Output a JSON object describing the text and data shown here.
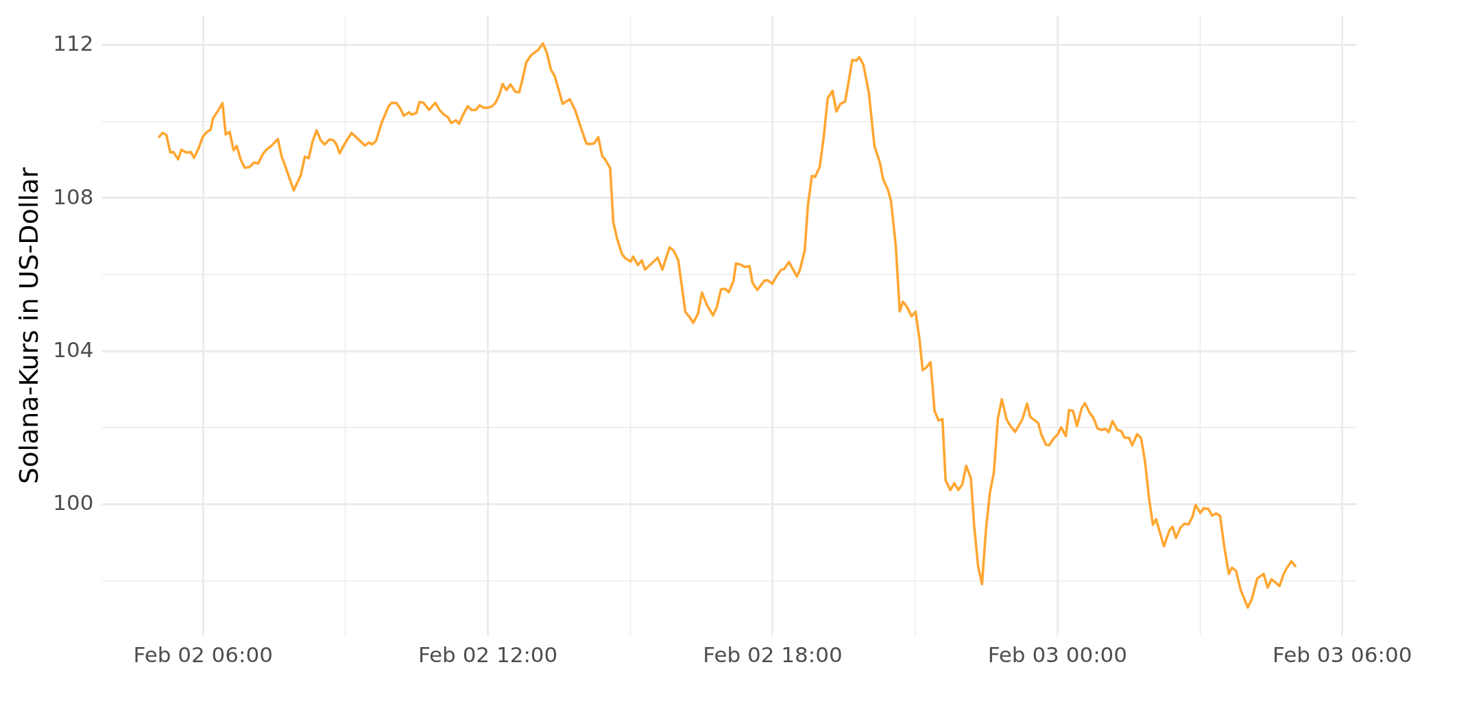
{
  "chart_data": {
    "type": "line",
    "ylabel": "Solana-Kurs in US-Dollar",
    "xlim": [
      "--02-02T03:52",
      "--02-03T06:18"
    ],
    "ylim": [
      96.56,
      112.77
    ],
    "xticks": [
      {
        "value": "--02-02T06:00",
        "label": "Feb 02 06:00"
      },
      {
        "value": "--02-02T09:00",
        "label": null
      },
      {
        "value": "--02-02T12:00",
        "label": "Feb 02 12:00"
      },
      {
        "value": "--02-02T15:00",
        "label": null
      },
      {
        "value": "--02-02T18:00",
        "label": "Feb 02 18:00"
      },
      {
        "value": "--02-02T21:00",
        "label": null
      },
      {
        "value": "--02-03T00:00",
        "label": "Feb 03 00:00"
      },
      {
        "value": "--02-03T03:00",
        "label": null
      },
      {
        "value": "--02-03T06:00",
        "label": "Feb 03 06:00"
      }
    ],
    "yticks": [
      {
        "value": 98,
        "label": null
      },
      100,
      {
        "value": 102,
        "label": null
      },
      104,
      {
        "value": 106,
        "label": null
      },
      108,
      {
        "value": 110,
        "label": null
      },
      112
    ],
    "grid": true,
    "line_style": "solid",
    "series": [
      {
        "color": "#ffa631",
        "x": [
          "--02-02T05:05",
          "--02-02T05:09",
          "--02-02T05:14",
          "--02-02T05:19",
          "--02-02T05:23",
          "--02-02T05:29",
          "--02-02T05:33",
          "--02-02T05:39",
          "--02-02T05:45",
          "--02-02T05:49",
          "--02-02T05:55",
          "--02-02T06:00",
          "--02-02T06:05",
          "--02-02T06:10",
          "--02-02T06:13",
          "--02-02T06:19",
          "--02-02T06:25",
          "--02-02T06:29",
          "--02-02T06:34",
          "--02-02T06:39",
          "--02-02T06:43",
          "--02-02T06:48",
          "--02-02T06:53",
          "--02-02T06:59",
          "--02-02T07:05",
          "--02-02T07:10",
          "--02-02T07:16",
          "--02-02T07:20",
          "--02-02T07:28",
          "--02-02T07:35",
          "--02-02T07:40",
          "--02-02T07:43",
          "--02-02T07:55",
          "--02-02T07:59",
          "--02-02T08:04",
          "--02-02T08:09",
          "--02-02T08:14",
          "--02-02T08:19",
          "--02-02T08:24",
          "--02-02T08:29",
          "--02-02T08:34",
          "--02-02T08:40",
          "--02-02T08:45",
          "--02-02T08:49",
          "--02-02T08:53",
          "--02-02T08:59",
          "--02-02T09:08",
          "--02-02T09:14",
          "--02-02T09:25",
          "--02-02T09:30",
          "--02-02T09:34",
          "--02-02T09:39",
          "--02-02T09:46",
          "--02-02T09:55",
          "--02-02T09:59",
          "--02-02T10:05",
          "--02-02T10:10",
          "--02-02T10:14",
          "--02-02T10:21",
          "--02-02T10:24",
          "--02-02T10:30",
          "--02-02T10:34",
          "--02-02T10:39",
          "--02-02T10:46",
          "--02-02T10:54",
          "--02-02T10:59",
          "--02-02T11:05",
          "--02-02T11:10",
          "--02-02T11:14",
          "--02-02T11:20",
          "--02-02T11:24",
          "--02-02T11:29",
          "--02-02T11:35",
          "--02-02T11:40",
          "--02-02T11:45",
          "--02-02T11:50",
          "--02-02T11:55",
          "--02-02T12:01",
          "--02-02T12:06",
          "--02-02T12:10",
          "--02-02T12:15",
          "--02-02T12:19",
          "--02-02T12:24",
          "--02-02T12:29",
          "--02-02T12:35",
          "--02-02T12:40",
          "--02-02T12:44",
          "--02-02T12:49",
          "--02-02T12:55",
          "--02-02T13:04",
          "--02-02T13:10",
          "--02-02T13:15",
          "--02-02T13:20",
          "--02-02T13:25",
          "--02-02T13:30",
          "--02-02T13:35",
          "--02-02T13:44",
          "--02-02T13:51",
          "--02-02T13:59",
          "--02-02T14:05",
          "--02-02T14:10",
          "--02-02T14:15",
          "--02-02T14:20",
          "--02-02T14:25",
          "--02-02T14:28",
          "--02-02T14:35",
          "--02-02T14:39",
          "--02-02T14:44",
          "--02-02T14:50",
          "--02-02T14:54",
          "--02-02T15:01",
          "--02-02T15:04",
          "--02-02T15:10",
          "--02-02T15:15",
          "--02-02T15:19",
          "--02-02T15:26",
          "--02-02T15:35",
          "--02-02T15:41",
          "--02-02T15:50",
          "--02-02T15:55",
          "--02-02T16:01",
          "--02-02T16:05",
          "--02-02T16:10",
          "--02-02T16:15",
          "--02-02T16:20",
          "--02-02T16:26",
          "--02-02T16:31",
          "--02-02T16:37",
          "--02-02T16:45",
          "--02-02T16:50",
          "--02-02T16:55",
          "--02-02T17:00",
          "--02-02T17:05",
          "--02-02T17:11",
          "--02-02T17:14",
          "--02-02T17:20",
          "--02-02T17:25",
          "--02-02T17:31",
          "--02-02T17:35",
          "--02-02T17:41",
          "--02-02T17:50",
          "--02-02T17:54",
          "--02-02T18:00",
          "--02-02T18:05",
          "--02-02T18:11",
          "--02-02T18:15",
          "--02-02T18:21",
          "--02-02T18:31",
          "--02-02T18:35",
          "--02-02T18:41",
          "--02-02T18:45",
          "--02-02T18:50",
          "--02-02T18:54",
          "--02-02T19:00",
          "--02-02T19:05",
          "--02-02T19:10",
          "--02-02T19:16",
          "--02-02T19:21",
          "--02-02T19:26",
          "--02-02T19:32",
          "--02-02T19:35",
          "--02-02T19:41",
          "--02-02T19:46",
          "--02-02T19:50",
          "--02-02T19:55",
          "--02-02T20:02",
          "--02-02T20:09",
          "--02-02T20:16",
          "--02-02T20:20",
          "--02-02T20:26",
          "--02-02T20:30",
          "--02-02T20:36",
          "--02-02T20:41",
          "--02-02T20:45",
          "--02-02T20:50",
          "--02-02T20:56",
          "--02-02T21:01",
          "--02-02T21:06",
          "--02-02T21:10",
          "--02-02T21:15",
          "--02-02T21:20",
          "--02-02T21:25",
          "--02-02T21:30",
          "--02-02T21:35",
          "--02-02T21:39",
          "--02-02T21:45",
          "--02-02T21:50",
          "--02-02T21:55",
          "--02-02T22:00",
          "--02-02T22:05",
          "--02-02T22:11",
          "--02-02T22:15",
          "--02-02T22:20",
          "--02-02T22:25",
          "--02-02T22:30",
          "--02-02T22:35",
          "--02-02T22:40",
          "--02-02T22:45",
          "--02-02T22:50",
          "--02-02T22:56",
          "--02-02T23:01",
          "--02-02T23:07",
          "--02-02T23:16",
          "--02-02T23:22",
          "--02-02T23:26",
          "--02-02T23:31",
          "--02-02T23:36",
          "--02-02T23:40",
          "--02-02T23:46",
          "--02-02T23:50",
          "--02-02T23:56",
          "--02-03T00:01",
          "--02-03T00:05",
          "--02-03T00:11",
          "--02-03T00:15",
          "--02-03T00:20",
          "--02-03T00:25",
          "--02-03T00:31",
          "--02-03T00:35",
          "--02-03T00:41",
          "--02-03T00:46",
          "--02-03T00:51",
          "--02-03T00:56",
          "--02-03T01:01",
          "--02-03T01:05",
          "--02-03T01:10",
          "--02-03T01:16",
          "--02-03T01:21",
          "--02-03T01:25",
          "--02-03T01:31",
          "--02-03T01:35",
          "--02-03T01:41",
          "--02-03T01:46",
          "--02-03T01:51",
          "--02-03T01:56",
          "--02-03T02:01",
          "--02-03T02:05",
          "--02-03T02:10",
          "--02-03T02:15",
          "--02-03T02:22",
          "--02-03T02:26",
          "--02-03T02:30",
          "--02-03T02:36",
          "--02-03T02:41",
          "--02-03T02:46",
          "--02-03T02:51",
          "--02-03T02:55",
          "--02-03T03:01",
          "--02-03T03:05",
          "--02-03T03:11",
          "--02-03T03:16",
          "--02-03T03:21",
          "--02-03T03:26",
          "--02-03T03:31",
          "--02-03T03:37",
          "--02-03T03:41",
          "--02-03T03:46",
          "--02-03T03:52",
          "--02-03T04:01",
          "--02-03T04:06",
          "--02-03T04:13",
          "--02-03T04:21",
          "--02-03T04:26",
          "--02-03T04:31",
          "--02-03T04:41",
          "--02-03T04:46",
          "--02-03T04:50",
          "--02-03T04:56",
          "--02-03T05:01"
        ],
        "values": [
          109.59,
          109.69,
          109.64,
          109.18,
          109.19,
          109.0,
          109.25,
          109.18,
          109.19,
          109.04,
          109.3,
          109.59,
          109.71,
          109.78,
          110.07,
          110.26,
          110.47,
          109.65,
          109.72,
          109.24,
          109.35,
          108.99,
          108.78,
          108.8,
          108.92,
          108.89,
          109.14,
          109.24,
          109.38,
          109.53,
          109.05,
          108.9,
          108.19,
          108.37,
          108.59,
          109.07,
          109.03,
          109.48,
          109.76,
          109.5,
          109.39,
          109.52,
          109.5,
          109.39,
          109.16,
          109.39,
          109.69,
          109.58,
          109.36,
          109.44,
          109.39,
          109.48,
          109.95,
          110.39,
          110.48,
          110.47,
          110.32,
          110.14,
          110.23,
          110.17,
          110.21,
          110.5,
          110.48,
          110.29,
          110.48,
          110.3,
          110.17,
          110.1,
          109.95,
          110.02,
          109.93,
          110.16,
          110.39,
          110.29,
          110.29,
          110.41,
          110.35,
          110.35,
          110.39,
          110.48,
          110.69,
          110.97,
          110.81,
          110.96,
          110.77,
          110.75,
          111.08,
          111.54,
          111.72,
          111.86,
          112.03,
          111.78,
          111.35,
          111.17,
          110.81,
          110.45,
          110.57,
          110.27,
          109.77,
          109.41,
          109.4,
          109.42,
          109.58,
          109.08,
          109.02,
          108.77,
          107.35,
          106.91,
          106.52,
          106.42,
          106.33,
          106.46,
          106.24,
          106.36,
          106.12,
          106.25,
          106.43,
          106.12,
          106.7,
          106.62,
          106.37,
          105.77,
          105.01,
          104.89,
          104.73,
          104.97,
          105.52,
          105.21,
          104.92,
          105.15,
          105.6,
          105.62,
          105.53,
          105.83,
          106.28,
          106.25,
          106.19,
          106.21,
          105.77,
          105.59,
          105.83,
          105.84,
          105.75,
          105.94,
          106.11,
          106.14,
          106.32,
          105.94,
          106.12,
          106.63,
          107.81,
          108.57,
          108.54,
          108.81,
          109.6,
          110.6,
          110.79,
          110.25,
          110.45,
          110.51,
          110.86,
          111.6,
          111.58,
          111.67,
          111.48,
          110.74,
          109.35,
          108.91,
          108.48,
          108.21,
          107.91,
          106.75,
          105.03,
          105.28,
          105.15,
          104.9,
          105.02,
          104.3,
          103.49,
          103.57,
          103.7,
          102.43,
          102.18,
          102.21,
          100.61,
          100.36,
          100.54,
          100.36,
          100.5,
          100.99,
          100.67,
          99.45,
          98.38,
          97.9,
          99.33,
          100.29,
          100.82,
          102.22,
          102.73,
          102.21,
          102.03,
          101.88,
          102.21,
          102.62,
          102.27,
          102.19,
          102.11,
          101.81,
          101.54,
          101.53,
          101.72,
          101.82,
          102.0,
          101.77,
          102.45,
          102.43,
          102.03,
          102.5,
          102.63,
          102.38,
          102.24,
          101.97,
          101.93,
          101.96,
          101.87,
          102.16,
          101.93,
          101.9,
          101.73,
          101.72,
          101.53,
          101.82,
          101.72,
          101.12,
          100.17,
          99.45,
          99.6,
          99.24,
          98.89,
          99.31,
          99.4,
          99.11,
          99.38,
          99.48,
          99.46,
          99.66,
          99.97,
          99.76,
          99.88,
          99.87,
          99.69,
          99.75,
          99.68,
          98.91,
          98.17,
          98.33,
          98.25,
          97.75,
          97.29,
          97.51,
          98.05,
          98.17,
          97.81,
          98.03,
          97.85,
          98.15,
          98.31,
          98.5,
          98.37
        ]
      }
    ]
  }
}
